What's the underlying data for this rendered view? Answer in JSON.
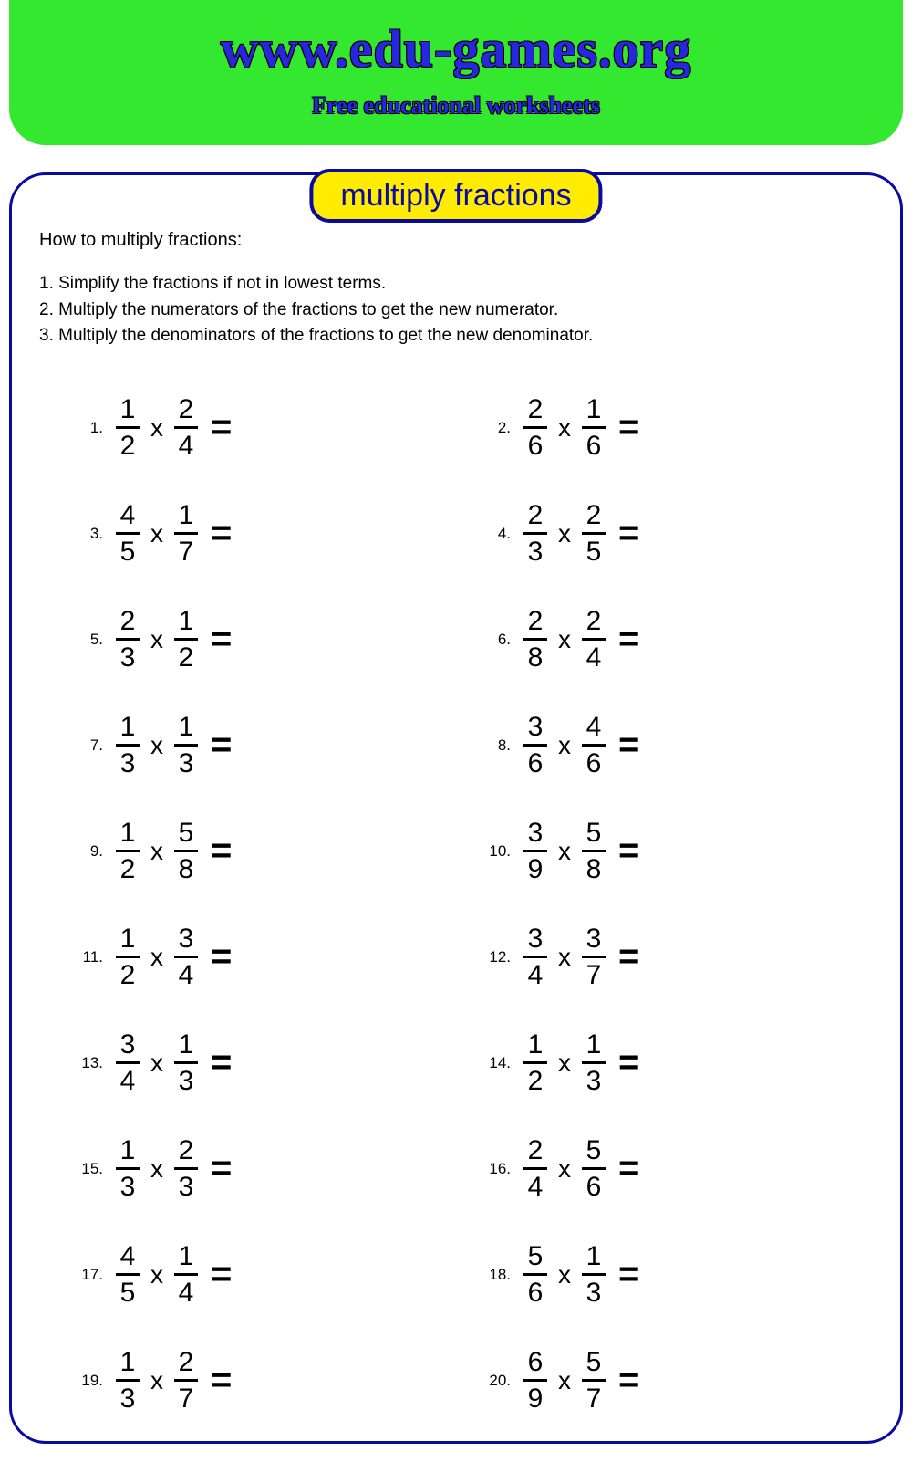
{
  "header": {
    "title": "www.edu-games.org",
    "subtitle": "Free educational worksheets",
    "bg_color": "#34e82f",
    "title_color": "#2727e0"
  },
  "badge": {
    "text": "multiply fractions",
    "bg_color": "#ffec00",
    "border_color": "#0a0aa0",
    "text_color": "#0a0aa0"
  },
  "panel": {
    "border_color": "#0a0aa0"
  },
  "instructions": {
    "title": "How to multiply fractions:",
    "steps": [
      "1. Simplify the fractions if not in lowest terms.",
      "2. Multiply the numerators of the fractions to get the new numerator.",
      "3. Multiply the denominators of the fractions to get the new denominator."
    ]
  },
  "operator": "x",
  "equals": "=",
  "problems": [
    {
      "n": "1.",
      "a_num": "1",
      "a_den": "2",
      "b_num": "2",
      "b_den": "4"
    },
    {
      "n": "2.",
      "a_num": "2",
      "a_den": "6",
      "b_num": "1",
      "b_den": "6"
    },
    {
      "n": "3.",
      "a_num": "4",
      "a_den": "5",
      "b_num": "1",
      "b_den": "7"
    },
    {
      "n": "4.",
      "a_num": "2",
      "a_den": "3",
      "b_num": "2",
      "b_den": "5"
    },
    {
      "n": "5.",
      "a_num": "2",
      "a_den": "3",
      "b_num": "1",
      "b_den": "2"
    },
    {
      "n": "6.",
      "a_num": "2",
      "a_den": "8",
      "b_num": "2",
      "b_den": "4"
    },
    {
      "n": "7.",
      "a_num": "1",
      "a_den": "3",
      "b_num": "1",
      "b_den": "3"
    },
    {
      "n": "8.",
      "a_num": "3",
      "a_den": "6",
      "b_num": "4",
      "b_den": "6"
    },
    {
      "n": "9.",
      "a_num": "1",
      "a_den": "2",
      "b_num": "5",
      "b_den": "8"
    },
    {
      "n": "10.",
      "a_num": "3",
      "a_den": "9",
      "b_num": "5",
      "b_den": "8"
    },
    {
      "n": "11.",
      "a_num": "1",
      "a_den": "2",
      "b_num": "3",
      "b_den": "4"
    },
    {
      "n": "12.",
      "a_num": "3",
      "a_den": "4",
      "b_num": "3",
      "b_den": "7"
    },
    {
      "n": "13.",
      "a_num": "3",
      "a_den": "4",
      "b_num": "1",
      "b_den": "3"
    },
    {
      "n": "14.",
      "a_num": "1",
      "a_den": "2",
      "b_num": "1",
      "b_den": "3"
    },
    {
      "n": "15.",
      "a_num": "1",
      "a_den": "3",
      "b_num": "2",
      "b_den": "3"
    },
    {
      "n": "16.",
      "a_num": "2",
      "a_den": "4",
      "b_num": "5",
      "b_den": "6"
    },
    {
      "n": "17.",
      "a_num": "4",
      "a_den": "5",
      "b_num": "1",
      "b_den": "4"
    },
    {
      "n": "18.",
      "a_num": "5",
      "a_den": "6",
      "b_num": "1",
      "b_den": "3"
    },
    {
      "n": "19.",
      "a_num": "1",
      "a_den": "3",
      "b_num": "2",
      "b_den": "7"
    },
    {
      "n": "20.",
      "a_num": "6",
      "a_den": "9",
      "b_num": "5",
      "b_den": "7"
    }
  ]
}
